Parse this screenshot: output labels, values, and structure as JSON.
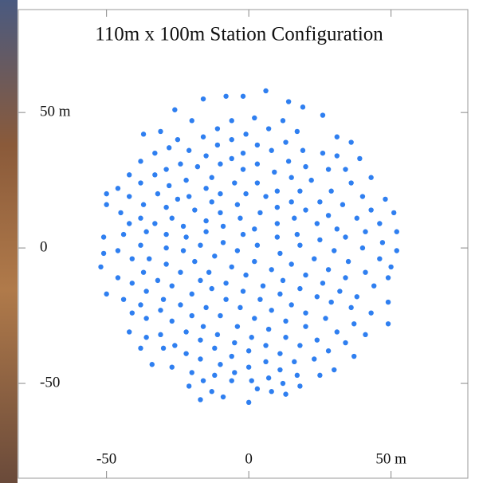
{
  "chart_data": {
    "type": "scatter",
    "title": "110m x 100m Station Configuration",
    "color": "#2f7ff0",
    "xlim": [
      -81,
      77
    ],
    "ylim": [
      -85,
      88
    ],
    "xticks": [
      -50,
      0,
      {
        "value": 50,
        "label": "50 m"
      }
    ],
    "yticks": [
      {
        "value": 50,
        "label": "50 m"
      },
      0,
      -50
    ],
    "grid": false,
    "x": [
      6,
      -8,
      -2,
      -16,
      14,
      19,
      -26,
      26,
      2,
      -6,
      -20,
      12,
      -11,
      7,
      17,
      -31,
      -1,
      -37,
      -16,
      31,
      -6,
      -25,
      36,
      13,
      3,
      -11,
      -28,
      19,
      8,
      -21,
      -33,
      -2,
      26,
      31,
      -15,
      39,
      -6,
      14,
      -38,
      3,
      -24,
      -10,
      20,
      -18,
      34,
      -29,
      -2,
      28,
      9,
      -33,
      -42,
      -13,
      15,
      43,
      -22,
      22,
      -38,
      -5,
      3,
      36,
      -28,
      -15,
      -46,
      29,
      10,
      18,
      -50,
      -10,
      -32,
      -1,
      -42,
      40,
      -21,
      6,
      48,
      -25,
      25,
      -13,
      15,
      -37,
      33,
      -4,
      -50,
      -29,
      10,
      43,
      20,
      -19,
      -10,
      4,
      -45,
      51,
      28,
      -38,
      38,
      -27,
      16,
      -3,
      -15,
      -33,
      10,
      -42,
      46,
      24,
      -23,
      -9,
      31,
      2,
      52,
      -36,
      41,
      -15,
      17,
      -29,
      -44,
      -2,
      -22,
      10,
      -51,
      34,
      25,
      -9,
      47,
      -38,
      -17,
      3,
      18,
      -29,
      40,
      52,
      -46,
      30,
      -23,
      -4,
      -51,
      11,
      -12,
      23,
      -35,
      46,
      -41,
      2,
      35,
      -19,
      15,
      -29,
      -6,
      -52,
      50,
      28,
      8,
      41,
      -14,
      -37,
      -24,
      20,
      -1,
      -46,
      34,
      49,
      -32,
      -17,
      12,
      -8,
      26,
      -41,
      5,
      -27,
      44,
      18,
      -13,
      32,
      -36,
      -2,
      -50,
      11,
      -20,
      24,
      38,
      -44,
      -30,
      -8,
      4,
      49,
      29,
      -24,
      15,
      -38,
      -15,
      -3,
      36,
      8,
      -31,
      20,
      43,
      -41,
      -20,
      -10,
      2,
      27,
      -36,
      13,
      -27,
      37,
      49,
      -16,
      -4,
      20,
      7,
      -42,
      -22,
      31,
      -11,
      41,
      -31,
      1,
      13,
      -36,
      24,
      -17,
      -5,
      34,
      6,
      -26,
      18,
      -12,
      -38,
      -30,
      0,
      28,
      -22,
      11,
      37,
      -6,
      23,
      -17,
      6,
      16,
      -10,
      -34,
      0,
      -27,
      30,
      11,
      -20,
      -5,
      25,
      17,
      -12,
      7,
      1,
      -16,
      -6,
      12,
      18,
      -21,
      3,
      -13,
      8,
      13,
      -9,
      -17,
      0
    ],
    "values": [
      58,
      56,
      56,
      55,
      54,
      52,
      51,
      49,
      48,
      47,
      47,
      47,
      44,
      44,
      43,
      43,
      42,
      42,
      41,
      41,
      40,
      40,
      39,
      39,
      38,
      38,
      37,
      36,
      36,
      36,
      35,
      35,
      35,
      34,
      34,
      33,
      33,
      32,
      32,
      31,
      31,
      31,
      30,
      30,
      29,
      29,
      29,
      29,
      28,
      27,
      27,
      26,
      26,
      26,
      25,
      25,
      24,
      24,
      24,
      24,
      23,
      22,
      22,
      21,
      21,
      21,
      20,
      20,
      20,
      20,
      19,
      19,
      19,
      19,
      18,
      18,
      17,
      17,
      17,
      16,
      16,
      16,
      16,
      15,
      15,
      14,
      14,
      14,
      13,
      13,
      13,
      13,
      12,
      11,
      11,
      11,
      11,
      11,
      10,
      9,
      9,
      9,
      9,
      9,
      8,
      8,
      7,
      7,
      6,
      6,
      6,
      6,
      5,
      5,
      5,
      5,
      4,
      4,
      4,
      4,
      3,
      2,
      2,
      1,
      1,
      1,
      1,
      0,
      0,
      -1,
      -1,
      -1,
      -1,
      -1,
      -2,
      -2,
      -3,
      -4,
      -4,
      -4,
      -4,
      -5,
      -5,
      -5,
      -6,
      -6,
      -7,
      -7,
      -7,
      -8,
      -8,
      -9,
      -9,
      -9,
      -9,
      -10,
      -10,
      -11,
      -11,
      -11,
      -12,
      -12,
      -12,
      -13,
      -13,
      -13,
      -14,
      -14,
      -14,
      -15,
      -15,
      -16,
      -16,
      -16,
      -17,
      -17,
      -17,
      -18,
      -18,
      -19,
      -19,
      -19,
      -19,
      -20,
      -20,
      -21,
      -21,
      -21,
      -22,
      -22,
      -22,
      -23,
      -23,
      -24,
      -24,
      -24,
      -25,
      -25,
      -26,
      -26,
      -26,
      -27,
      -27,
      -28,
      -28,
      -29,
      -29,
      -29,
      -30,
      -31,
      -31,
      -31,
      -32,
      -32,
      -32,
      -33,
      -33,
      -33,
      -34,
      -34,
      -35,
      -35,
      -36,
      -36,
      -36,
      -37,
      -37,
      -37,
      -38,
      -38,
      -39,
      -39,
      -40,
      -40,
      -41,
      -41,
      -42,
      -42,
      -43,
      -43,
      -44,
      -44,
      -45,
      -45,
      -46,
      -46,
      -47,
      -47,
      -47,
      -48,
      -49,
      -49,
      -49,
      -50,
      -51,
      -51,
      -52,
      -53,
      -53,
      -54,
      -55,
      -56,
      -57
    ]
  }
}
